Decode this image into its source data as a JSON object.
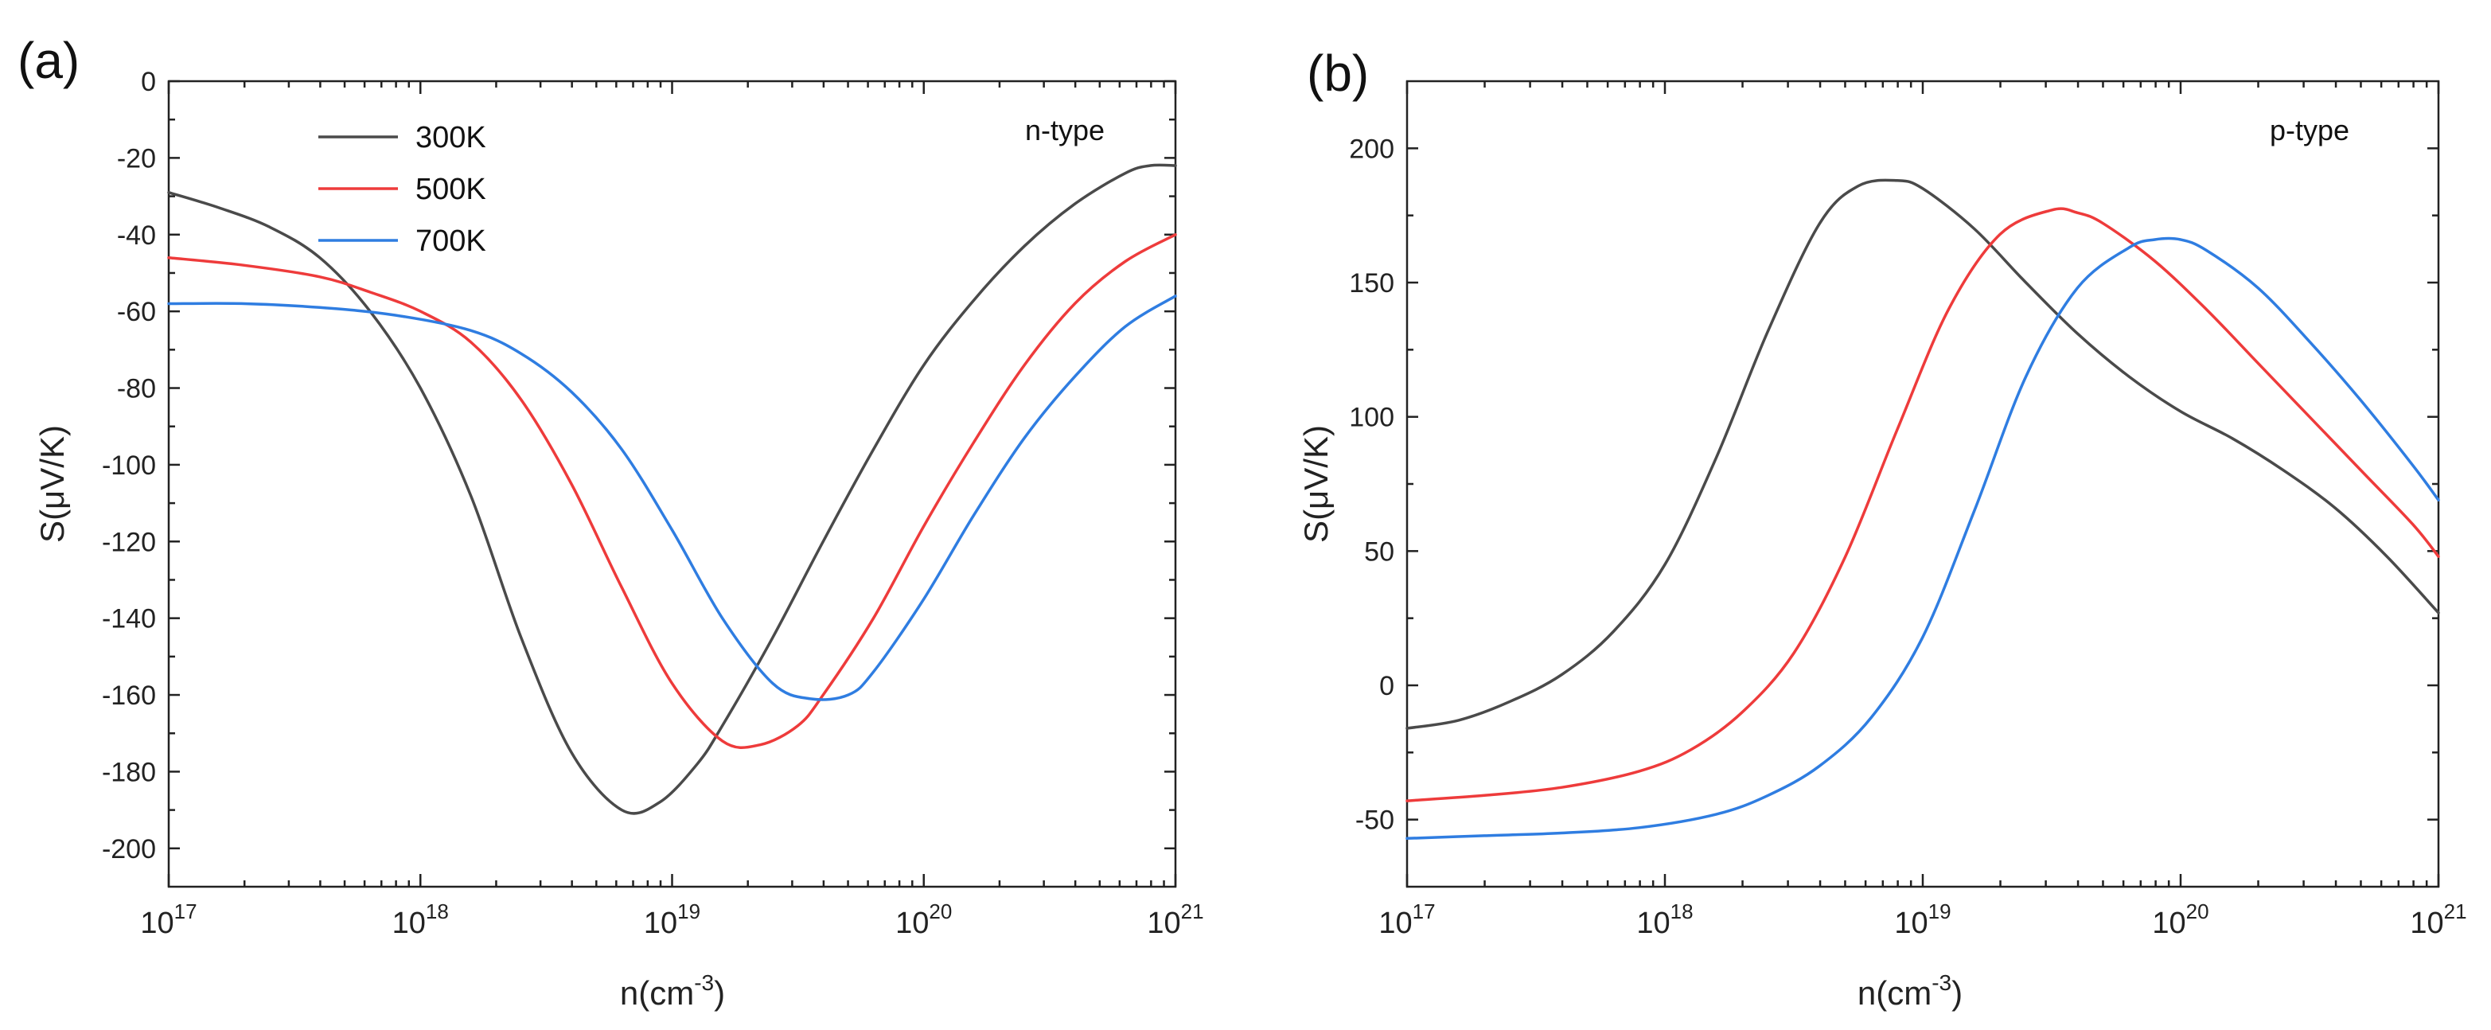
{
  "chart_data": [
    {
      "type": "line",
      "panel_label": "(a)",
      "annotation": "n-type",
      "xscale": "log",
      "xlim": [
        1e+17,
        1e+21
      ],
      "ylim": [
        -210,
        0
      ],
      "xlabel": "n(cm-3)",
      "xlabel_base": "n(cm",
      "xlabel_sup": "-3",
      "xlabel_tail": ")",
      "ylabel": "S(μV/K)",
      "x_ticks": [
        {
          "base": "10",
          "exp": "17",
          "value": 1e+17
        },
        {
          "base": "10",
          "exp": "18",
          "value": 1e+18
        },
        {
          "base": "10",
          "exp": "19",
          "value": 1e+19
        },
        {
          "base": "10",
          "exp": "20",
          "value": 1e+20
        },
        {
          "base": "10",
          "exp": "21",
          "value": 1e+21
        }
      ],
      "y_ticks": [
        0,
        -20,
        -40,
        -60,
        -80,
        -100,
        -120,
        -140,
        -160,
        -180,
        -200
      ],
      "y_tick_labels": [
        "0",
        "-20",
        "-40",
        "-60",
        "-80",
        "-100",
        "-120",
        "-140",
        "-160",
        "-180",
        "-200"
      ],
      "legend": {
        "placement": "top-left",
        "entries": [
          "300K",
          "500K",
          "700K"
        ]
      },
      "series": [
        {
          "name": "300K",
          "color": "#4a4a4a",
          "log_x": [
            17,
            17.2,
            17.4,
            17.6,
            17.8,
            18,
            18.2,
            18.4,
            18.6,
            18.8,
            18.95,
            19.1,
            19.2,
            19.4,
            19.6,
            19.8,
            20,
            20.2,
            20.4,
            20.6,
            20.8,
            20.9,
            21
          ],
          "y": [
            -29,
            -33,
            -38,
            -46,
            -60,
            -80,
            -108,
            -145,
            -175,
            -190,
            -188,
            -178,
            -168,
            -145,
            -120,
            -96,
            -74,
            -57,
            -43,
            -32,
            -24,
            -22,
            -22
          ]
        },
        {
          "name": "500K",
          "color": "#ee3b3b",
          "log_x": [
            17,
            17.3,
            17.6,
            17.8,
            18,
            18.2,
            18.4,
            18.6,
            18.8,
            19,
            19.2,
            19.35,
            19.5,
            19.6,
            19.8,
            20,
            20.2,
            20.4,
            20.6,
            20.8,
            21
          ],
          "y": [
            -46,
            -48,
            -51,
            -55,
            -60,
            -68,
            -83,
            -105,
            -132,
            -157,
            -172,
            -173,
            -168,
            -160,
            -140,
            -116,
            -94,
            -74,
            -58,
            -47,
            -40
          ]
        },
        {
          "name": "700K",
          "color": "#2f7de1",
          "log_x": [
            17,
            17.3,
            17.6,
            17.9,
            18.2,
            18.4,
            18.6,
            18.8,
            19,
            19.2,
            19.4,
            19.55,
            19.7,
            19.8,
            20,
            20.2,
            20.4,
            20.6,
            20.8,
            21
          ],
          "y": [
            -58,
            -58,
            -59,
            -61,
            -65,
            -71,
            -81,
            -96,
            -117,
            -140,
            -157,
            -161,
            -160,
            -154,
            -135,
            -113,
            -93,
            -77,
            -64,
            -56
          ]
        }
      ]
    },
    {
      "type": "line",
      "panel_label": "(b)",
      "annotation": "p-type",
      "xscale": "log",
      "xlim": [
        1e+17,
        1e+21
      ],
      "ylim": [
        -75,
        225
      ],
      "xlabel": "n(cm-3)",
      "xlabel_base": "n(cm",
      "xlabel_sup": "-3",
      "xlabel_tail": ")",
      "ylabel": "S(μV/K)",
      "x_ticks": [
        {
          "base": "10",
          "exp": "17",
          "value": 1e+17
        },
        {
          "base": "10",
          "exp": "18",
          "value": 1e+18
        },
        {
          "base": "10",
          "exp": "19",
          "value": 1e+19
        },
        {
          "base": "10",
          "exp": "20",
          "value": 1e+20
        },
        {
          "base": "10",
          "exp": "21",
          "value": 1e+21
        }
      ],
      "y_ticks": [
        -50,
        0,
        50,
        100,
        150,
        200
      ],
      "y_tick_labels": [
        "-50",
        "0",
        "50",
        "100",
        "150",
        "200"
      ],
      "series": [
        {
          "name": "300K",
          "color": "#4a4a4a",
          "log_x": [
            17,
            17.2,
            17.4,
            17.6,
            17.8,
            18,
            18.2,
            18.4,
            18.6,
            18.75,
            18.9,
            19,
            19.2,
            19.4,
            19.6,
            19.8,
            20,
            20.2,
            20.4,
            20.6,
            20.8,
            21
          ],
          "y": [
            -16,
            -13,
            -6,
            4,
            20,
            45,
            85,
            132,
            172,
            186,
            188,
            185,
            170,
            150,
            131,
            115,
            102,
            92,
            80,
            66,
            48,
            27
          ]
        },
        {
          "name": "500K",
          "color": "#ee3b3b",
          "log_x": [
            17,
            17.3,
            17.6,
            17.9,
            18.1,
            18.3,
            18.5,
            18.7,
            18.9,
            19.1,
            19.3,
            19.5,
            19.6,
            19.7,
            19.9,
            20.1,
            20.3,
            20.5,
            20.7,
            20.9,
            21
          ],
          "y": [
            -43,
            -41,
            -38,
            -32,
            -24,
            -10,
            12,
            48,
            95,
            140,
            168,
            177,
            176,
            172,
            158,
            140,
            120,
            100,
            80,
            60,
            48
          ]
        },
        {
          "name": "700K",
          "color": "#2f7de1",
          "log_x": [
            17,
            17.3,
            17.6,
            17.9,
            18.2,
            18.4,
            18.6,
            18.8,
            19,
            19.2,
            19.4,
            19.6,
            19.8,
            19.9,
            20,
            20.1,
            20.3,
            20.5,
            20.7,
            20.9,
            21
          ],
          "y": [
            -57,
            -56,
            -55,
            -53,
            -48,
            -41,
            -30,
            -12,
            18,
            65,
            115,
            148,
            163,
            166,
            166,
            162,
            148,
            128,
            106,
            82,
            69
          ]
        }
      ]
    }
  ]
}
